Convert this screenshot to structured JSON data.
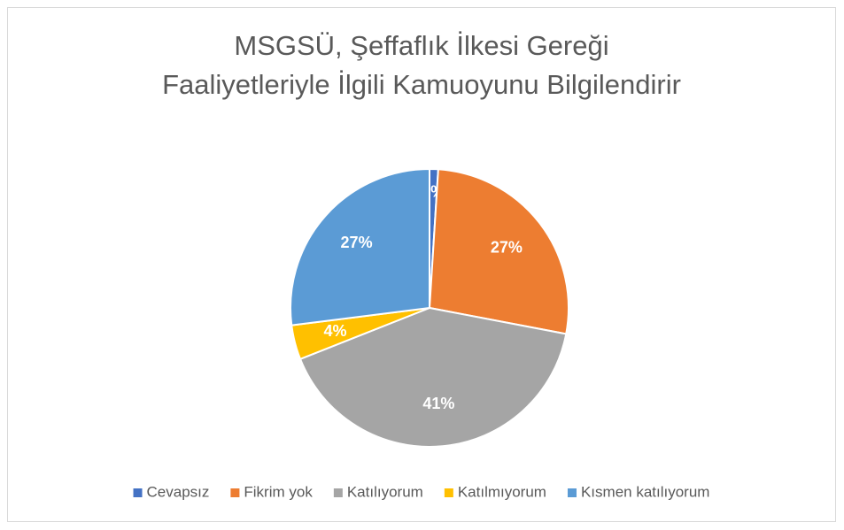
{
  "chart_data": {
    "type": "pie",
    "title": "MSGSÜ, Şeffaflık İlkesi Gereği Faaliyetleriyle İlgili Kamuoyunu Bilgilendirir",
    "categories": [
      "Cevapsız",
      "Fikrim yok",
      "Katılıyorum",
      "Katılmıyorum",
      "Kısmen katılıyorum"
    ],
    "values": [
      1,
      27,
      41,
      4,
      27
    ],
    "value_labels": [
      "1%",
      "27%",
      "41%",
      "4%",
      "27%"
    ],
    "colors": [
      "#4472c4",
      "#ed7d31",
      "#a5a5a5",
      "#ffc000",
      "#5b9bd5"
    ],
    "legend": "bottom"
  }
}
